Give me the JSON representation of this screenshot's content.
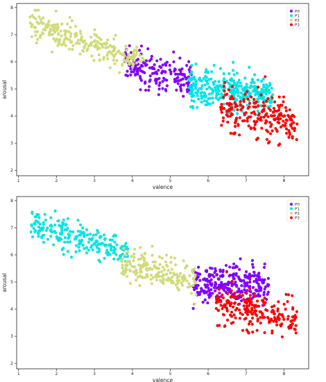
{
  "chart_data": [
    {
      "type": "scatter",
      "xlabel": "valence",
      "ylabel": "arousal",
      "xlim": [
        0.95,
        8.65
      ],
      "ylim": [
        1.8,
        8.15
      ],
      "xticks": [
        1,
        2,
        3,
        4,
        5,
        6,
        7,
        8
      ],
      "yticks": [
        2,
        3,
        4,
        5,
        6,
        7,
        8
      ],
      "grid": false,
      "legend_position": "top-right",
      "series": [
        {
          "name": "P0",
          "color": "#8000ff",
          "cluster": {
            "x": [
              3.8,
              5.6
            ],
            "y_center": 5.6,
            "slope": -0.35,
            "spread": 0.55,
            "count": 190
          }
        },
        {
          "name": "P1",
          "color": "#00e5e5",
          "cluster": {
            "x": [
              5.5,
              7.7
            ],
            "y_center": 4.95,
            "slope": -0.1,
            "spread": 0.6,
            "count": 330
          }
        },
        {
          "name": "P2",
          "color": "#cfdc78",
          "cluster": {
            "x": [
              1.3,
              4.3
            ],
            "y_center": 6.7,
            "slope": -0.45,
            "spread": 0.5,
            "count": 240
          }
        },
        {
          "name": "P3",
          "color": "#ff0000",
          "cluster": {
            "x": [
              6.3,
              8.35
            ],
            "y_center": 4.0,
            "slope": -0.3,
            "spread": 0.7,
            "count": 220
          }
        }
      ]
    },
    {
      "type": "scatter",
      "xlabel": "valence",
      "ylabel": "arousal",
      "xlim": [
        0.95,
        8.65
      ],
      "ylim": [
        1.8,
        8.15
      ],
      "xticks": [
        1,
        2,
        3,
        4,
        5,
        6,
        7,
        8
      ],
      "yticks": [
        2,
        3,
        4,
        5,
        6,
        7,
        8
      ],
      "grid": false,
      "legend_position": "top-right",
      "series": [
        {
          "name": "P0",
          "color": "#8000ff",
          "cluster": {
            "x": [
              5.6,
              7.6
            ],
            "y_center": 4.95,
            "slope": -0.05,
            "spread": 0.6,
            "count": 280
          }
        },
        {
          "name": "P1",
          "color": "#00e5e5",
          "cluster": {
            "x": [
              1.3,
              3.9
            ],
            "y_center": 6.6,
            "slope": -0.45,
            "spread": 0.5,
            "count": 220
          }
        },
        {
          "name": "P2",
          "color": "#cfdc78",
          "cluster": {
            "x": [
              3.7,
              5.7
            ],
            "y_center": 5.4,
            "slope": -0.3,
            "spread": 0.55,
            "count": 200
          }
        },
        {
          "name": "P3",
          "color": "#ff0000",
          "cluster": {
            "x": [
              6.2,
              8.35
            ],
            "y_center": 3.9,
            "slope": -0.3,
            "spread": 0.7,
            "count": 220
          }
        }
      ]
    }
  ]
}
